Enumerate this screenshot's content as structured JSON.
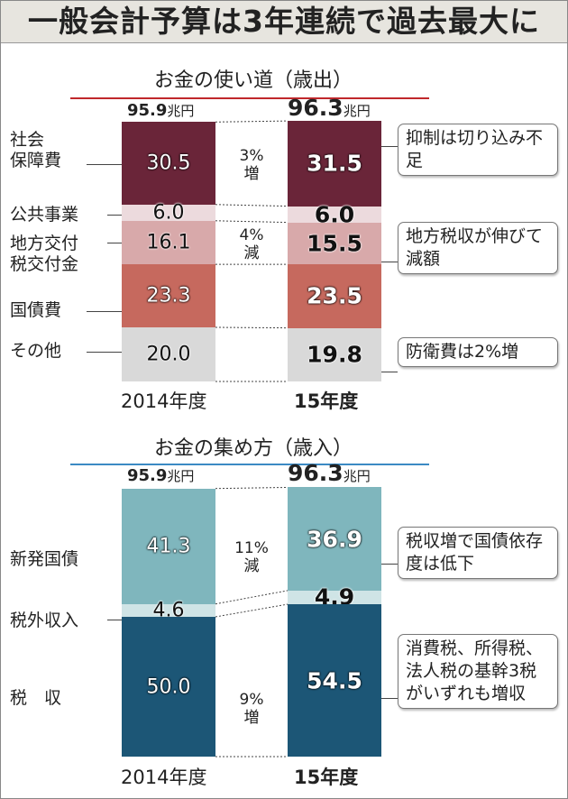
{
  "title": "一般会計予算は3年連続で過去最大に",
  "chart_data": [
    {
      "type": "bar",
      "stacked": true,
      "title": "お金の使い道（歳出）",
      "categories": [
        "2014年度",
        "15年度"
      ],
      "unit": "兆円",
      "totals": [
        "95.9",
        "96.3"
      ],
      "series": [
        {
          "name": "社会保障費",
          "values": [
            30.5,
            31.5
          ],
          "labels": [
            "30.5",
            "31.5"
          ],
          "color": "#6a2539"
        },
        {
          "name": "公共事業",
          "values": [
            6.0,
            6.0
          ],
          "labels": [
            "6.0",
            "6.0"
          ],
          "color": "#ecdadd"
        },
        {
          "name": "地方交付税交付金",
          "values": [
            16.1,
            15.5
          ],
          "labels": [
            "16.1",
            "15.5"
          ],
          "color": "#d8a9aa"
        },
        {
          "name": "国債費",
          "values": [
            23.3,
            23.5
          ],
          "labels": [
            "23.3",
            "23.5"
          ],
          "color": "#c6695e"
        },
        {
          "name": "その他",
          "values": [
            20.0,
            19.8
          ],
          "labels": [
            "20.0",
            "19.8"
          ],
          "color": "#d9d9d9"
        }
      ],
      "changes": [
        {
          "text": "3%",
          "word": "増"
        },
        {
          "text": "4%",
          "word": "減"
        }
      ],
      "callouts": [
        "抑制は切り込み不足",
        "地方税収が伸びて減額",
        "防衛費は2%増"
      ]
    },
    {
      "type": "bar",
      "stacked": true,
      "title": "お金の集め方（歳入）",
      "categories": [
        "2014年度",
        "15年度"
      ],
      "unit": "兆円",
      "totals": [
        "95.9",
        "96.3"
      ],
      "series": [
        {
          "name": "新発国債",
          "values": [
            41.3,
            36.9
          ],
          "labels": [
            "41.3",
            "36.9"
          ],
          "color": "#7fb6bd"
        },
        {
          "name": "税外収入",
          "values": [
            4.6,
            4.9
          ],
          "labels": [
            "4.6",
            "4.9"
          ],
          "color": "#cfe4e6"
        },
        {
          "name": "税収",
          "values": [
            50.0,
            54.5
          ],
          "labels": [
            "50.0",
            "54.5"
          ],
          "color": "#1c5676"
        }
      ],
      "changes": [
        {
          "text": "11%",
          "word": "減"
        },
        {
          "text": "9%",
          "word": "増"
        }
      ],
      "callouts": [
        "税収増で国債依存度は低下",
        "消費税、所得税、法人税の基幹3税がいずれも増収"
      ]
    }
  ],
  "left_labels_top": [
    "社会保障費",
    "公共事業",
    "地方交付税交付金",
    "国債費",
    "その他"
  ],
  "left_labels_top_lines": [
    "社会",
    "保障費",
    "地方交付",
    "税交付金"
  ],
  "left_labels_bottom": [
    "新発国債",
    "税外収入",
    "税　収"
  ]
}
